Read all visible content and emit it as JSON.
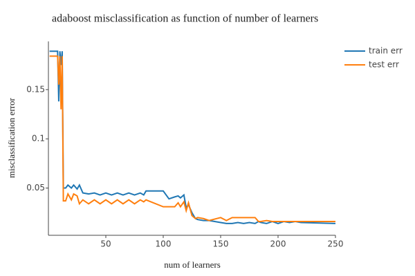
{
  "chart_data": {
    "type": "line",
    "title": "adaboost misclassification as function of number of learners",
    "x_label": "num of learners",
    "y_label": "misclassification error",
    "x": [
      1,
      8,
      9,
      10,
      11,
      12,
      13,
      15,
      17,
      20,
      22,
      25,
      27,
      30,
      35,
      40,
      45,
      50,
      55,
      60,
      65,
      70,
      75,
      80,
      83,
      85,
      100,
      105,
      110,
      113,
      115,
      118,
      120,
      122,
      125,
      128,
      130,
      135,
      140,
      150,
      155,
      160,
      165,
      170,
      175,
      180,
      183,
      185,
      190,
      195,
      200,
      205,
      210,
      215,
      220,
      250
    ],
    "series": [
      {
        "name": "train err",
        "color": "#1f77b4",
        "values": [
          0.189,
          0.189,
          0.138,
          0.189,
          0.175,
          0.189,
          0.05,
          0.05,
          0.053,
          0.05,
          0.053,
          0.049,
          0.053,
          0.045,
          0.044,
          0.045,
          0.043,
          0.045,
          0.043,
          0.045,
          0.043,
          0.045,
          0.043,
          0.045,
          0.043,
          0.047,
          0.047,
          0.039,
          0.041,
          0.042,
          0.04,
          0.043,
          0.03,
          0.033,
          0.025,
          0.019,
          0.018,
          0.017,
          0.017,
          0.015,
          0.014,
          0.014,
          0.015,
          0.014,
          0.015,
          0.014,
          0.016,
          0.015,
          0.014,
          0.016,
          0.014,
          0.016,
          0.015,
          0.016,
          0.015,
          0.014
        ]
      },
      {
        "name": "test err",
        "color": "#ff7f0e",
        "values": [
          0.184,
          0.184,
          0.155,
          0.184,
          0.13,
          0.184,
          0.037,
          0.037,
          0.044,
          0.038,
          0.044,
          0.042,
          0.034,
          0.038,
          0.034,
          0.038,
          0.034,
          0.038,
          0.034,
          0.038,
          0.034,
          0.038,
          0.034,
          0.038,
          0.036,
          0.038,
          0.031,
          0.031,
          0.031,
          0.035,
          0.031,
          0.036,
          0.027,
          0.035,
          0.022,
          0.019,
          0.02,
          0.019,
          0.017,
          0.02,
          0.017,
          0.02,
          0.02,
          0.02,
          0.02,
          0.02,
          0.016,
          0.016,
          0.017,
          0.016,
          0.016,
          0.016,
          0.016,
          0.016,
          0.016,
          0.016
        ]
      }
    ],
    "xlim": [
      0,
      250
    ],
    "xticks": [
      50,
      100,
      150,
      200,
      250
    ],
    "ylim": [
      0.002,
      0.199
    ],
    "yticks": [
      0.05,
      0.1,
      0.15
    ],
    "grid": false,
    "legend": "top-right"
  }
}
